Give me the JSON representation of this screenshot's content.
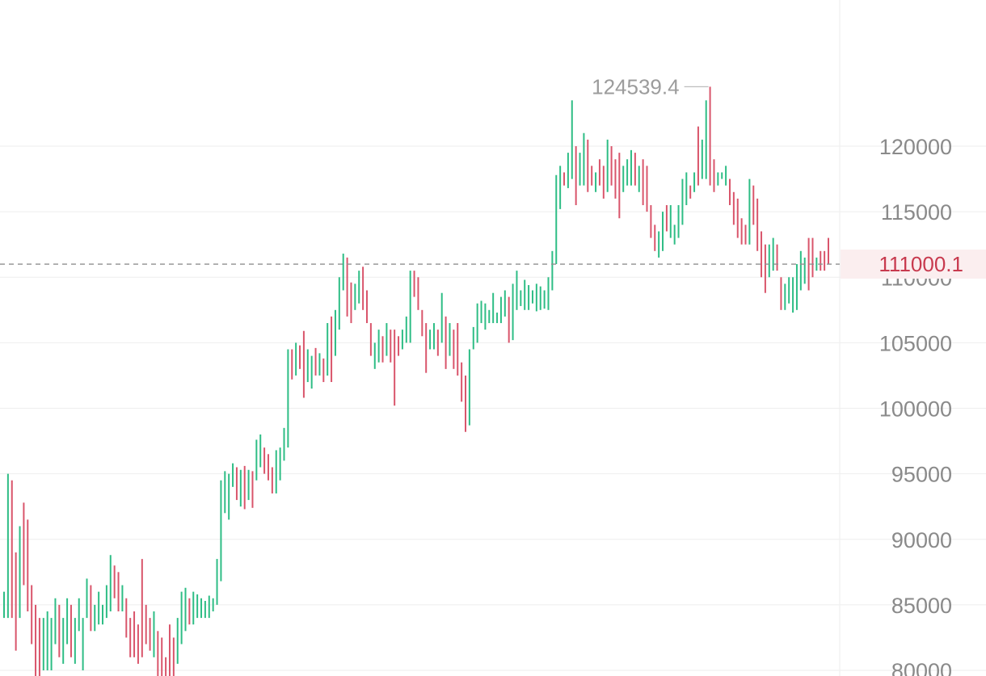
{
  "chart_data": {
    "type": "ohlc",
    "title": "",
    "xlabel": "",
    "ylabel": "",
    "ylim": [
      79000,
      131000
    ],
    "y_ticks": [
      80000,
      85000,
      90000,
      95000,
      100000,
      105000,
      110000,
      115000,
      120000
    ],
    "y_tick_labels": [
      "80000",
      "85000",
      "90000",
      "95000",
      "100000",
      "105000",
      "110000",
      "115000",
      "120000"
    ],
    "grid": true,
    "current_price": 111000.1,
    "current_price_label": "111000.1",
    "peak_value": 124539.4,
    "peak_label": "124539.4",
    "colors": {
      "up": "#2ebd85",
      "down": "#d9556b",
      "price_label": "#c83a4e"
    },
    "bars": [
      {
        "high": 86000,
        "low": 84000,
        "dir": "up"
      },
      {
        "high": 95000,
        "low": 84000,
        "dir": "up"
      },
      {
        "high": 94500,
        "low": 84000,
        "dir": "down"
      },
      {
        "high": 89000,
        "low": 81500,
        "dir": "down"
      },
      {
        "high": 91000,
        "low": 84000,
        "dir": "up"
      },
      {
        "high": 92800,
        "low": 86500,
        "dir": "down"
      },
      {
        "high": 91500,
        "low": 84500,
        "dir": "down"
      },
      {
        "high": 86500,
        "low": 82000,
        "dir": "down"
      },
      {
        "high": 85000,
        "low": 79000,
        "dir": "down"
      },
      {
        "high": 84000,
        "low": 79000,
        "dir": "down"
      },
      {
        "high": 84000,
        "low": 80000,
        "dir": "up"
      },
      {
        "high": 84500,
        "low": 80000,
        "dir": "up"
      },
      {
        "high": 84000,
        "low": 80000,
        "dir": "up"
      },
      {
        "high": 85500,
        "low": 82000,
        "dir": "up"
      },
      {
        "high": 85000,
        "low": 81000,
        "dir": "down"
      },
      {
        "high": 84000,
        "low": 80500,
        "dir": "up"
      },
      {
        "high": 85500,
        "low": 82000,
        "dir": "up"
      },
      {
        "high": 85000,
        "low": 81000,
        "dir": "down"
      },
      {
        "high": 84000,
        "low": 80500,
        "dir": "up"
      },
      {
        "high": 85500,
        "low": 83000,
        "dir": "up"
      },
      {
        "high": 84000,
        "low": 80000,
        "dir": "up"
      },
      {
        "high": 87000,
        "low": 84000,
        "dir": "up"
      },
      {
        "high": 86500,
        "low": 83000,
        "dir": "down"
      },
      {
        "high": 85000,
        "low": 83000,
        "dir": "up"
      },
      {
        "high": 86000,
        "low": 83500,
        "dir": "up"
      },
      {
        "high": 85000,
        "low": 83500,
        "dir": "up"
      },
      {
        "high": 86500,
        "low": 84000,
        "dir": "up"
      },
      {
        "high": 88800,
        "low": 84500,
        "dir": "up"
      },
      {
        "high": 88000,
        "low": 85500,
        "dir": "down"
      },
      {
        "high": 87500,
        "low": 84500,
        "dir": "down"
      },
      {
        "high": 86500,
        "low": 84500,
        "dir": "up"
      },
      {
        "high": 85500,
        "low": 82500,
        "dir": "down"
      },
      {
        "high": 84000,
        "low": 81000,
        "dir": "down"
      },
      {
        "high": 84500,
        "low": 81000,
        "dir": "down"
      },
      {
        "high": 83500,
        "low": 80500,
        "dir": "down"
      },
      {
        "high": 88500,
        "low": 81000,
        "dir": "down"
      },
      {
        "high": 85000,
        "low": 82000,
        "dir": "down"
      },
      {
        "high": 84000,
        "low": 81500,
        "dir": "down"
      },
      {
        "high": 84500,
        "low": 81000,
        "dir": "up"
      },
      {
        "high": 83000,
        "low": 79500,
        "dir": "down"
      },
      {
        "high": 82500,
        "low": 79000,
        "dir": "down"
      },
      {
        "high": 81000,
        "low": 79000,
        "dir": "down"
      },
      {
        "high": 83500,
        "low": 79000,
        "dir": "down"
      },
      {
        "high": 82500,
        "low": 79000,
        "dir": "down"
      },
      {
        "high": 84000,
        "low": 80500,
        "dir": "up"
      },
      {
        "high": 86000,
        "low": 82000,
        "dir": "up"
      },
      {
        "high": 86300,
        "low": 83000,
        "dir": "up"
      },
      {
        "high": 85500,
        "low": 83500,
        "dir": "down"
      },
      {
        "high": 86000,
        "low": 83500,
        "dir": "up"
      },
      {
        "high": 85800,
        "low": 84000,
        "dir": "up"
      },
      {
        "high": 85500,
        "low": 84000,
        "dir": "up"
      },
      {
        "high": 85300,
        "low": 84000,
        "dir": "up"
      },
      {
        "high": 85700,
        "low": 84000,
        "dir": "up"
      },
      {
        "high": 85500,
        "low": 84500,
        "dir": "up"
      },
      {
        "high": 88500,
        "low": 85000,
        "dir": "up"
      },
      {
        "high": 94500,
        "low": 86800,
        "dir": "up"
      },
      {
        "high": 95200,
        "low": 92000,
        "dir": "up"
      },
      {
        "high": 95000,
        "low": 91500,
        "dir": "up"
      },
      {
        "high": 95800,
        "low": 94000,
        "dir": "up"
      },
      {
        "high": 95500,
        "low": 93000,
        "dir": "down"
      },
      {
        "high": 95300,
        "low": 92500,
        "dir": "up"
      },
      {
        "high": 95600,
        "low": 92300,
        "dir": "down"
      },
      {
        "high": 95300,
        "low": 93000,
        "dir": "up"
      },
      {
        "high": 95200,
        "low": 92400,
        "dir": "down"
      },
      {
        "high": 97600,
        "low": 94500,
        "dir": "up"
      },
      {
        "high": 98000,
        "low": 95500,
        "dir": "up"
      },
      {
        "high": 97000,
        "low": 95000,
        "dir": "down"
      },
      {
        "high": 96500,
        "low": 94500,
        "dir": "down"
      },
      {
        "high": 95500,
        "low": 93500,
        "dir": "down"
      },
      {
        "high": 96800,
        "low": 93500,
        "dir": "up"
      },
      {
        "high": 97000,
        "low": 94500,
        "dir": "up"
      },
      {
        "high": 98500,
        "low": 96000,
        "dir": "up"
      },
      {
        "high": 104500,
        "low": 97000,
        "dir": "up"
      },
      {
        "high": 104500,
        "low": 102200,
        "dir": "down"
      },
      {
        "high": 105000,
        "low": 102500,
        "dir": "up"
      },
      {
        "high": 104800,
        "low": 103000,
        "dir": "down"
      },
      {
        "high": 105900,
        "low": 100800,
        "dir": "down"
      },
      {
        "high": 104500,
        "low": 102000,
        "dir": "up"
      },
      {
        "high": 104000,
        "low": 101500,
        "dir": "up"
      },
      {
        "high": 104600,
        "low": 102500,
        "dir": "down"
      },
      {
        "high": 104200,
        "low": 102500,
        "dir": "up"
      },
      {
        "high": 103800,
        "low": 102000,
        "dir": "down"
      },
      {
        "high": 106500,
        "low": 102500,
        "dir": "up"
      },
      {
        "high": 107000,
        "low": 102000,
        "dir": "down"
      },
      {
        "high": 107500,
        "low": 104000,
        "dir": "up"
      },
      {
        "high": 110000,
        "low": 106000,
        "dir": "up"
      },
      {
        "high": 111800,
        "low": 109000,
        "dir": "up"
      },
      {
        "high": 111500,
        "low": 107000,
        "dir": "down"
      },
      {
        "high": 109600,
        "low": 106500,
        "dir": "down"
      },
      {
        "high": 109500,
        "low": 107500,
        "dir": "up"
      },
      {
        "high": 110500,
        "low": 108000,
        "dir": "up"
      },
      {
        "high": 110800,
        "low": 107500,
        "dir": "down"
      },
      {
        "high": 109000,
        "low": 106500,
        "dir": "down"
      },
      {
        "high": 106500,
        "low": 104000,
        "dir": "down"
      },
      {
        "high": 105000,
        "low": 103000,
        "dir": "up"
      },
      {
        "high": 106000,
        "low": 103500,
        "dir": "up"
      },
      {
        "high": 105500,
        "low": 103500,
        "dir": "down"
      },
      {
        "high": 106500,
        "low": 104000,
        "dir": "up"
      },
      {
        "high": 106000,
        "low": 103500,
        "dir": "down"
      },
      {
        "high": 106000,
        "low": 100200,
        "dir": "down"
      },
      {
        "high": 105500,
        "low": 104000,
        "dir": "down"
      },
      {
        "high": 106000,
        "low": 104500,
        "dir": "up"
      },
      {
        "high": 107000,
        "low": 105000,
        "dir": "up"
      },
      {
        "high": 110500,
        "low": 105000,
        "dir": "up"
      },
      {
        "high": 110500,
        "low": 108500,
        "dir": "down"
      },
      {
        "high": 110000,
        "low": 107500,
        "dir": "down"
      },
      {
        "high": 107500,
        "low": 105500,
        "dir": "down"
      },
      {
        "high": 106500,
        "low": 102700,
        "dir": "down"
      },
      {
        "high": 106000,
        "low": 104500,
        "dir": "up"
      },
      {
        "high": 106500,
        "low": 104500,
        "dir": "up"
      },
      {
        "high": 106000,
        "low": 104000,
        "dir": "down"
      },
      {
        "high": 108800,
        "low": 105000,
        "dir": "up"
      },
      {
        "high": 107000,
        "low": 103000,
        "dir": "down"
      },
      {
        "high": 106500,
        "low": 104000,
        "dir": "up"
      },
      {
        "high": 106000,
        "low": 103000,
        "dir": "down"
      },
      {
        "high": 106500,
        "low": 102500,
        "dir": "down"
      },
      {
        "high": 103500,
        "low": 100500,
        "dir": "down"
      },
      {
        "high": 102500,
        "low": 98200,
        "dir": "down"
      },
      {
        "high": 104500,
        "low": 98700,
        "dir": "up"
      },
      {
        "high": 106200,
        "low": 104500,
        "dir": "up"
      },
      {
        "high": 108000,
        "low": 105000,
        "dir": "up"
      },
      {
        "high": 108200,
        "low": 106500,
        "dir": "up"
      },
      {
        "high": 108000,
        "low": 106000,
        "dir": "up"
      },
      {
        "high": 107500,
        "low": 106500,
        "dir": "up"
      },
      {
        "high": 108800,
        "low": 106500,
        "dir": "up"
      },
      {
        "high": 107300,
        "low": 106500,
        "dir": "up"
      },
      {
        "high": 108500,
        "low": 106500,
        "dir": "up"
      },
      {
        "high": 109000,
        "low": 107000,
        "dir": "up"
      },
      {
        "high": 108500,
        "low": 105000,
        "dir": "down"
      },
      {
        "high": 109500,
        "low": 105200,
        "dir": "up"
      },
      {
        "high": 110500,
        "low": 107500,
        "dir": "up"
      },
      {
        "high": 109000,
        "low": 107800,
        "dir": "up"
      },
      {
        "high": 109800,
        "low": 107500,
        "dir": "up"
      },
      {
        "high": 109400,
        "low": 107500,
        "dir": "up"
      },
      {
        "high": 109000,
        "low": 108000,
        "dir": "up"
      },
      {
        "high": 109500,
        "low": 107400,
        "dir": "up"
      },
      {
        "high": 109300,
        "low": 107500,
        "dir": "up"
      },
      {
        "high": 109000,
        "low": 107600,
        "dir": "up"
      },
      {
        "high": 110000,
        "low": 107500,
        "dir": "up"
      },
      {
        "high": 112000,
        "low": 109000,
        "dir": "up"
      },
      {
        "high": 117800,
        "low": 111000,
        "dir": "up"
      },
      {
        "high": 118500,
        "low": 115200,
        "dir": "up"
      },
      {
        "high": 118000,
        "low": 117000,
        "dir": "down"
      },
      {
        "high": 119500,
        "low": 116800,
        "dir": "up"
      },
      {
        "high": 123500,
        "low": 117500,
        "dir": "up"
      },
      {
        "high": 120000,
        "low": 115500,
        "dir": "down"
      },
      {
        "high": 119500,
        "low": 117000,
        "dir": "up"
      },
      {
        "high": 121000,
        "low": 117000,
        "dir": "up"
      },
      {
        "high": 120500,
        "low": 116500,
        "dir": "down"
      },
      {
        "high": 118500,
        "low": 117000,
        "dir": "down"
      },
      {
        "high": 118000,
        "low": 116500,
        "dir": "up"
      },
      {
        "high": 119000,
        "low": 117000,
        "dir": "down"
      },
      {
        "high": 118500,
        "low": 116000,
        "dir": "down"
      },
      {
        "high": 120500,
        "low": 116500,
        "dir": "up"
      },
      {
        "high": 120000,
        "low": 117000,
        "dir": "down"
      },
      {
        "high": 119000,
        "low": 116000,
        "dir": "down"
      },
      {
        "high": 119500,
        "low": 114500,
        "dir": "down"
      },
      {
        "high": 118500,
        "low": 116500,
        "dir": "up"
      },
      {
        "high": 119000,
        "low": 117000,
        "dir": "up"
      },
      {
        "high": 119700,
        "low": 117000,
        "dir": "up"
      },
      {
        "high": 119500,
        "low": 117000,
        "dir": "down"
      },
      {
        "high": 118500,
        "low": 116500,
        "dir": "up"
      },
      {
        "high": 119000,
        "low": 115500,
        "dir": "down"
      },
      {
        "high": 118500,
        "low": 115000,
        "dir": "down"
      },
      {
        "high": 115500,
        "low": 113000,
        "dir": "down"
      },
      {
        "high": 114000,
        "low": 112000,
        "dir": "down"
      },
      {
        "high": 113500,
        "low": 111500,
        "dir": "up"
      },
      {
        "high": 115000,
        "low": 112000,
        "dir": "up"
      },
      {
        "high": 115500,
        "low": 113500,
        "dir": "down"
      },
      {
        "high": 115500,
        "low": 113000,
        "dir": "up"
      },
      {
        "high": 114000,
        "low": 112500,
        "dir": "up"
      },
      {
        "high": 115500,
        "low": 113000,
        "dir": "up"
      },
      {
        "high": 117500,
        "low": 114000,
        "dir": "up"
      },
      {
        "high": 118000,
        "low": 115500,
        "dir": "up"
      },
      {
        "high": 117000,
        "low": 116000,
        "dir": "down"
      },
      {
        "high": 118000,
        "low": 116500,
        "dir": "up"
      },
      {
        "high": 121500,
        "low": 117000,
        "dir": "down"
      },
      {
        "high": 120500,
        "low": 117500,
        "dir": "up"
      },
      {
        "high": 123500,
        "low": 117500,
        "dir": "up"
      },
      {
        "high": 124539.4,
        "low": 117000,
        "dir": "down"
      },
      {
        "high": 119000,
        "low": 116500,
        "dir": "down"
      },
      {
        "high": 118000,
        "low": 117000,
        "dir": "up"
      },
      {
        "high": 118000,
        "low": 117500,
        "dir": "up"
      },
      {
        "high": 118500,
        "low": 117000,
        "dir": "up"
      },
      {
        "high": 117500,
        "low": 115500,
        "dir": "down"
      },
      {
        "high": 116500,
        "low": 114000,
        "dir": "down"
      },
      {
        "high": 116000,
        "low": 113000,
        "dir": "down"
      },
      {
        "high": 114500,
        "low": 112500,
        "dir": "down"
      },
      {
        "high": 114000,
        "low": 112500,
        "dir": "down"
      },
      {
        "high": 117500,
        "low": 112500,
        "dir": "up"
      },
      {
        "high": 117000,
        "low": 114000,
        "dir": "down"
      },
      {
        "high": 116000,
        "low": 112000,
        "dir": "down"
      },
      {
        "high": 113500,
        "low": 110000,
        "dir": "down"
      },
      {
        "high": 112500,
        "low": 108800,
        "dir": "down"
      },
      {
        "high": 112500,
        "low": 110000,
        "dir": "up"
      },
      {
        "high": 113000,
        "low": 110500,
        "dir": "up"
      },
      {
        "high": 112500,
        "low": 110500,
        "dir": "down"
      },
      {
        "high": 110000,
        "low": 107500,
        "dir": "down"
      },
      {
        "high": 109500,
        "low": 107500,
        "dir": "up"
      },
      {
        "high": 110000,
        "low": 108000,
        "dir": "up"
      },
      {
        "high": 110000,
        "low": 107300,
        "dir": "up"
      },
      {
        "high": 111000,
        "low": 107500,
        "dir": "up"
      },
      {
        "high": 112000,
        "low": 109000,
        "dir": "up"
      },
      {
        "high": 111500,
        "low": 109500,
        "dir": "up"
      },
      {
        "high": 113000,
        "low": 109000,
        "dir": "down"
      },
      {
        "high": 113000,
        "low": 110000,
        "dir": "down"
      },
      {
        "high": 111500,
        "low": 110500,
        "dir": "up"
      },
      {
        "high": 112000,
        "low": 110500,
        "dir": "down"
      },
      {
        "high": 112000,
        "low": 110500,
        "dir": "down"
      },
      {
        "high": 113000,
        "low": 111000,
        "dir": "down"
      }
    ]
  }
}
